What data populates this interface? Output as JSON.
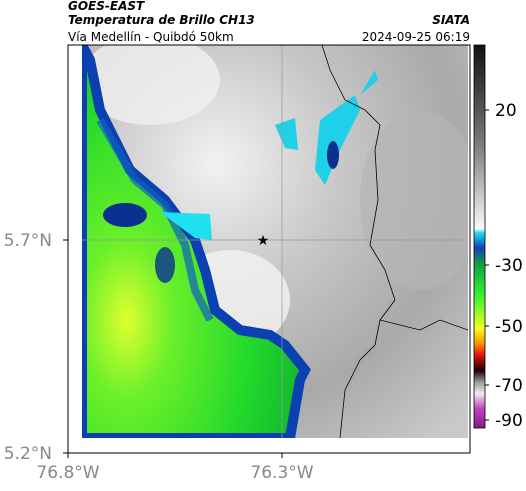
{
  "header": {
    "title": "GOES-EAST",
    "subtitle": "Temperatura de Brillo CH13",
    "source": "SIATA",
    "route": "Vía Medellín - Quibdó 50km",
    "timestamp": "2024-09-25 06:19"
  },
  "map": {
    "lat_labels": [
      "5.7°N",
      "5.2°N"
    ],
    "lon_labels": [
      "76.8°W",
      "76.3°W"
    ]
  },
  "colorbar": {
    "ticks": [
      20,
      -30,
      -50,
      -70,
      -90
    ]
  }
}
